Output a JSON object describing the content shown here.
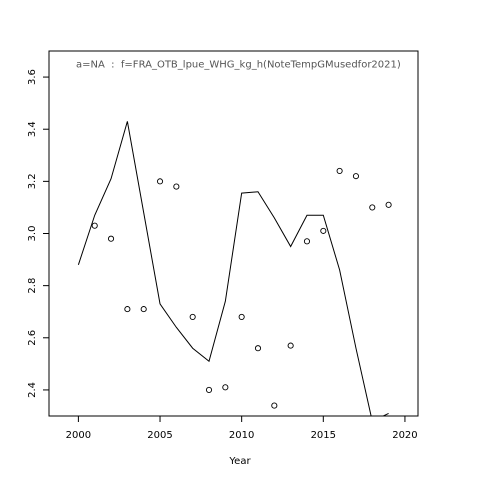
{
  "chart_data": {
    "type": "scatter",
    "annotation": "a=NA  :  f=FRA_OTB_lpue_WHG_kg_h(NoteTempGMusedfor2021)",
    "xlabel": "Year",
    "ylabel": "",
    "xlim": [
      1998.2,
      2020.8
    ],
    "ylim": [
      2.3,
      3.7
    ],
    "x_ticks": [
      2000,
      2005,
      2010,
      2015,
      2020
    ],
    "y_ticks": [
      2.4,
      2.6,
      2.8,
      3.0,
      3.2,
      3.4,
      3.6
    ],
    "y_tick_labels": [
      "2.4",
      "2.6",
      "2.8",
      "3.0",
      "3.2",
      "3.4",
      "3.6"
    ],
    "grid": false,
    "series": [
      {
        "kind": "points",
        "marker": "open-circle",
        "x": [
          2001,
          2002,
          2003,
          2004,
          2005,
          2006,
          2007,
          2008,
          2009,
          2010,
          2011,
          2012,
          2013,
          2014,
          2015,
          2016,
          2017,
          2018,
          2019
        ],
        "y": [
          3.03,
          2.98,
          2.71,
          2.71,
          3.2,
          3.18,
          2.68,
          2.4,
          2.41,
          2.68,
          2.56,
          2.34,
          2.57,
          2.97,
          3.01,
          3.24,
          3.22,
          3.1,
          3.11
        ]
      },
      {
        "kind": "line",
        "x": [
          2000,
          2001,
          2002,
          2003,
          2004,
          2005,
          2006,
          2007,
          2008,
          2009,
          2010,
          2011,
          2012,
          2013,
          2014,
          2015,
          2016,
          2017,
          2018,
          2019
        ],
        "y": [
          2.88,
          3.07,
          3.21,
          3.43,
          3.08,
          2.73,
          2.64,
          2.56,
          2.51,
          2.74,
          3.155,
          3.16,
          3.06,
          2.95,
          3.07,
          3.07,
          2.86,
          2.56,
          2.28,
          2.31
        ]
      }
    ]
  }
}
